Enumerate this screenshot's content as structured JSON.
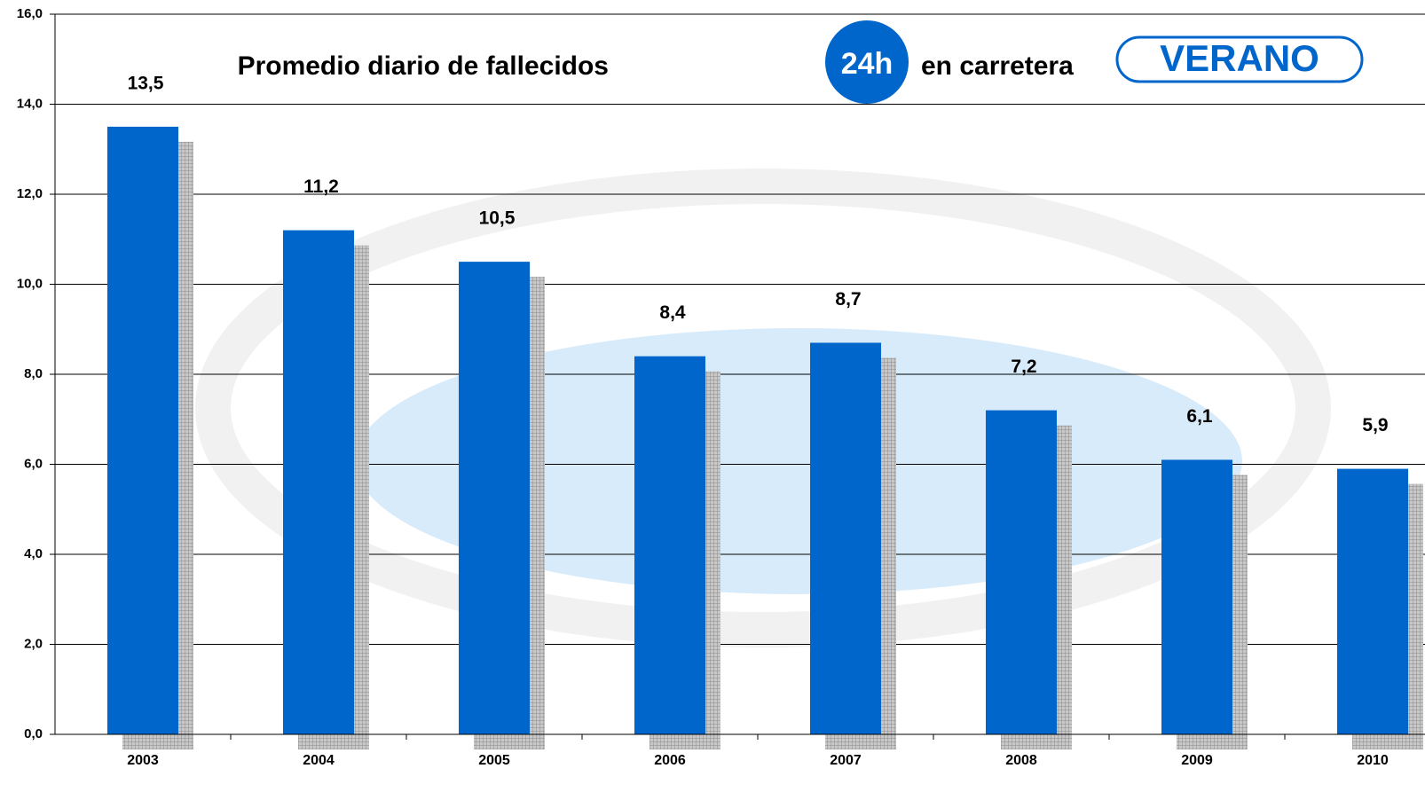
{
  "chart_data": {
    "type": "bar",
    "title": "Promedio diario de fallecidos",
    "title_badge": "24h",
    "title_suffix": "en carretera",
    "season": "VERANO",
    "categories": [
      "2003",
      "2004",
      "2005",
      "2006",
      "2007",
      "2008",
      "2009",
      "2010"
    ],
    "values": [
      13.5,
      11.2,
      10.5,
      8.4,
      8.7,
      7.2,
      6.1,
      5.9
    ],
    "value_labels": [
      "13,5",
      "11,2",
      "10,5",
      "8,4",
      "8,7",
      "7,2",
      "6,1",
      "5,9"
    ],
    "color": "#0066cc",
    "ylim": [
      0,
      16
    ],
    "yticks": [
      {
        "value": 0,
        "label": "0,0"
      },
      {
        "value": 2,
        "label": "2,0"
      },
      {
        "value": 4,
        "label": "4,0"
      },
      {
        "value": 6,
        "label": "6,0"
      },
      {
        "value": 8,
        "label": "8,0"
      },
      {
        "value": 10,
        "label": "10,0"
      },
      {
        "value": 12,
        "label": "12,0"
      },
      {
        "value": 14,
        "label": "14,0"
      },
      {
        "value": 16,
        "label": "16,0"
      }
    ],
    "grid": true
  }
}
